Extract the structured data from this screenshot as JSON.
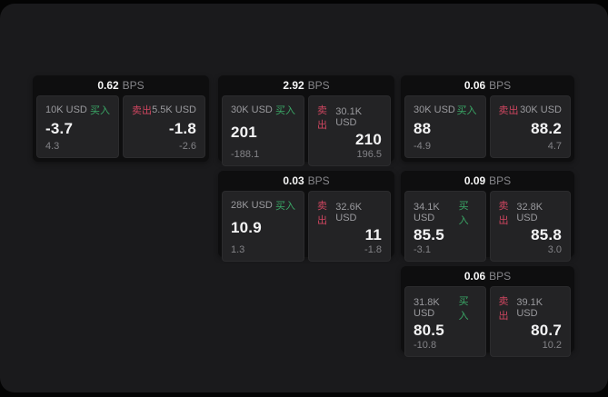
{
  "labels": {
    "bps_unit": "BPS",
    "buy": "买入",
    "sell": "卖出"
  },
  "colors": {
    "page_bg": "#040404",
    "window_bg": "#1a1a1c",
    "card_bg": "#0e0e0f",
    "panel_bg": "#232325",
    "buy_green": "#3aa766",
    "sell_red": "#cf4660",
    "text_primary": "#f4f4f5",
    "text_secondary": "#9a9a9e",
    "text_muted": "#838387"
  },
  "cards": [
    {
      "bps": "0.62",
      "buy": {
        "amount": "10K USD",
        "price": "-3.7",
        "delta": "4.3"
      },
      "sell": {
        "amount": "5.5K USD",
        "price": "-1.8",
        "delta": "-2.6"
      }
    },
    {
      "bps": "2.92",
      "buy": {
        "amount": "30K USD",
        "price": "201",
        "delta": "-188.1"
      },
      "sell": {
        "amount": "30.1K USD",
        "price": "210",
        "delta": "196.5"
      }
    },
    {
      "bps": "0.06",
      "buy": {
        "amount": "30K USD",
        "price": "88",
        "delta": "-4.9"
      },
      "sell": {
        "amount": "30K USD",
        "price": "88.2",
        "delta": "4.7"
      }
    },
    {
      "bps": "0.03",
      "buy": {
        "amount": "28K USD",
        "price": "10.9",
        "delta": "1.3"
      },
      "sell": {
        "amount": "32.6K USD",
        "price": "11",
        "delta": "-1.8"
      }
    },
    {
      "bps": "0.09",
      "buy": {
        "amount": "34.1K USD",
        "price": "85.5",
        "delta": "-3.1"
      },
      "sell": {
        "amount": "32.8K USD",
        "price": "85.8",
        "delta": "3.0"
      }
    },
    {
      "bps": "0.06",
      "buy": {
        "amount": "31.8K USD",
        "price": "80.5",
        "delta": "-10.8"
      },
      "sell": {
        "amount": "39.1K USD",
        "price": "80.7",
        "delta": "10.2"
      }
    }
  ]
}
